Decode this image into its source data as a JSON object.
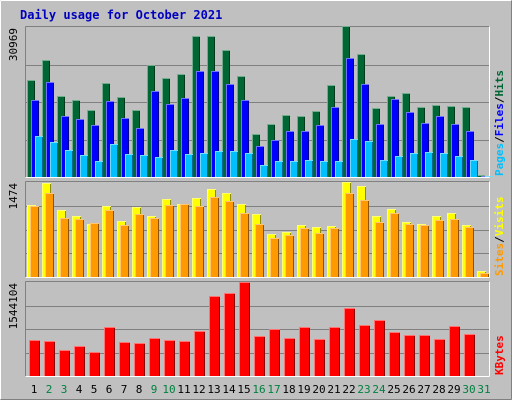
{
  "chart_data": {
    "type": "bar",
    "title": "Daily usage for October 2021",
    "categories": [
      "1",
      "2",
      "3",
      "4",
      "5",
      "6",
      "7",
      "8",
      "9",
      "10",
      "11",
      "12",
      "13",
      "14",
      "15",
      "16",
      "17",
      "18",
      "19",
      "20",
      "21",
      "22",
      "23",
      "24",
      "25",
      "26",
      "27",
      "28",
      "29",
      "30",
      "31"
    ],
    "weekend_days": [
      "2",
      "3",
      "9",
      "10",
      "16",
      "17",
      "23",
      "24",
      "30",
      "31"
    ],
    "colors": {
      "hits": "#006633",
      "files": "#0000ff",
      "pages": "#00c0ff",
      "visits": "#ffff00",
      "sites": "#ff9900",
      "kbytes": "#ff0000",
      "weekday": "#000000",
      "weekend": "#00803f"
    },
    "panels": [
      {
        "name": "hits-files-pages",
        "ymax_label": "30969",
        "ymax": 30969,
        "legend": [
          {
            "text": "Pages",
            "color": "#00c0ff"
          },
          {
            "text": "Files",
            "color": "#0000ff"
          },
          {
            "text": "Hits",
            "color": "#006633"
          }
        ],
        "separator": "/",
        "series": [
          {
            "name": "Hits",
            "color": "#006633",
            "values": [
              20100,
              24200,
              16700,
              16000,
              13900,
              19400,
              16600,
              13900,
              23100,
              20500,
              21300,
              29100,
              29100,
              26200,
              20800,
              8800,
              11000,
              12800,
              12600,
              13600,
              19000,
              31100,
              25400,
              14300,
              16700,
              17400,
              14400,
              14800,
              14600,
              14500,
              400
            ]
          },
          {
            "name": "Files",
            "color": "#0000ff",
            "values": [
              15800,
              19600,
              12600,
              12000,
              10800,
              15700,
              12100,
              10200,
              17700,
              15000,
              16400,
              21800,
              21800,
              19200,
              16000,
              6400,
              7700,
              9600,
              9600,
              10800,
              14500,
              24600,
              19200,
              10900,
              16100,
              13500,
              11200,
              12500,
              11000,
              9500,
              300
            ]
          },
          {
            "name": "Pages",
            "color": "#00c0ff",
            "values": [
              8500,
              7300,
              5500,
              4500,
              3400,
              6800,
              4800,
              4600,
              4100,
              5600,
              4800,
              4900,
              5400,
              5300,
              4900,
              2500,
              3300,
              3400,
              3500,
              3300,
              3300,
              7800,
              7500,
              3600,
              4400,
              5000,
              5100,
              5000,
              4300,
              3500,
              200
            ]
          }
        ]
      },
      {
        "name": "visits-sites",
        "ymax_label": "1474",
        "ymax": 1474,
        "legend": [
          {
            "text": "Sites",
            "color": "#ff9900"
          },
          {
            "text": "Visits",
            "color": "#ffff00"
          }
        ],
        "separator": "/",
        "series": [
          {
            "name": "Visits",
            "color": "#ffff00",
            "values": [
              1120,
              1460,
              1040,
              940,
              820,
              1100,
              870,
              1080,
              940,
              1210,
              1130,
              1230,
              1370,
              1310,
              1130,
              980,
              660,
              700,
              800,
              780,
              790,
              1480,
              1410,
              950,
              1050,
              850,
              820,
              950,
              1000,
              800,
              90
            ]
          },
          {
            "name": "Sites",
            "color": "#ff9900",
            "values": [
              1100,
              1300,
              920,
              900,
              840,
              1040,
              800,
              970,
              920,
              1120,
              1130,
              1100,
              1240,
              1180,
              990,
              830,
              610,
              650,
              760,
              680,
              760,
              1300,
              1200,
              860,
              990,
              820,
              800,
              890,
              900,
              770,
              60
            ]
          }
        ]
      },
      {
        "name": "kbytes",
        "ymax_label": "1544104",
        "ymax": 1544104,
        "legend": [
          {
            "text": "KBytes",
            "color": "#ff0000"
          }
        ],
        "separator": "",
        "series": [
          {
            "name": "KBytes",
            "color": "#ff0000",
            "values": [
              590000,
              580000,
              420000,
              500000,
              390000,
              800000,
              560000,
              550000,
              620000,
              590000,
              580000,
              740000,
              1310000,
              1370000,
              1544104,
              650000,
              780000,
              620000,
              800000,
              600000,
              800000,
              1120000,
              830000,
              920000,
              720000,
              670000,
              670000,
              600000,
              820000,
              690000,
              0
            ]
          }
        ]
      }
    ]
  }
}
